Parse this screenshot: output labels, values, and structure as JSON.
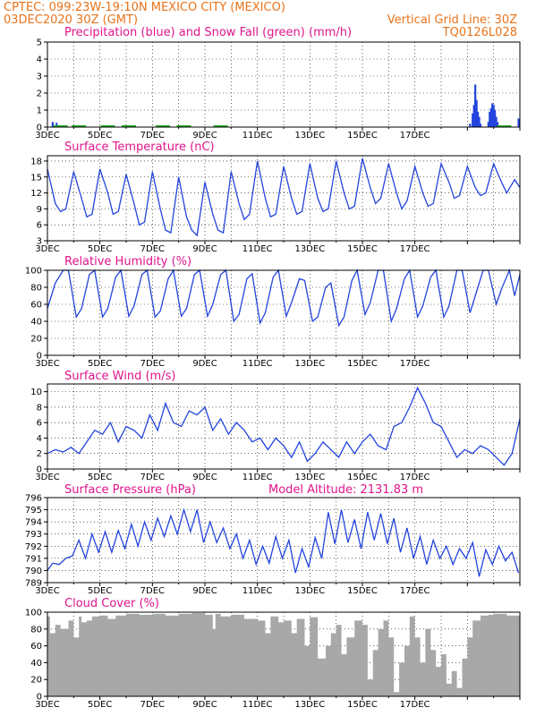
{
  "header": {
    "line1": "CPTEC:   099:23W-19:10N   MEXICO CITY (MEXICO)",
    "line2": "03DEC2020 30Z (GMT)",
    "grid_note": "Vertical Grid Line: 30Z",
    "model_code": "TQ0126L028"
  },
  "colors": {
    "header": "#e8731a",
    "title": "#e0148c",
    "line": "#2244dd",
    "snow": "#22aa22",
    "cloud": "#a8a8a8"
  },
  "chart_data": [
    {
      "type": "bar",
      "title": "Precipitation (blue) and Snow Fall (green) (mm/h)",
      "ylim": [
        0,
        5
      ],
      "yticks": [
        0,
        1,
        2,
        3,
        4,
        5
      ],
      "xticks": [
        "3DEC",
        "5DEC",
        "7DEC",
        "9DEC",
        "11DEC",
        "13DEC",
        "15DEC",
        "17DEC"
      ],
      "precip": [
        [
          0.2,
          0.3
        ],
        [
          0.35,
          0.25
        ],
        [
          16.1,
          0.2
        ],
        [
          16.2,
          0.8
        ],
        [
          16.25,
          1.3
        ],
        [
          16.3,
          2.5
        ],
        [
          16.35,
          1.6
        ],
        [
          16.4,
          0.9
        ],
        [
          16.45,
          0.6
        ],
        [
          16.5,
          0.2
        ],
        [
          16.8,
          0.3
        ],
        [
          16.85,
          0.9
        ],
        [
          16.9,
          1.1
        ],
        [
          16.95,
          1.4
        ],
        [
          17.0,
          1.3
        ],
        [
          17.05,
          1.0
        ],
        [
          17.1,
          0.6
        ],
        [
          17.15,
          0.3
        ],
        [
          17.25,
          0.1
        ],
        [
          17.6,
          0.1
        ],
        [
          17.95,
          0.5
        ]
      ],
      "snow": [
        [
          0.5,
          0.05
        ],
        [
          1.2,
          0.05
        ],
        [
          2.3,
          0.05
        ],
        [
          3.1,
          0.05
        ],
        [
          4.4,
          0.05
        ],
        [
          5.2,
          0.05
        ],
        [
          6.6,
          0.05
        ],
        [
          17.4,
          0.05
        ]
      ]
    },
    {
      "type": "line",
      "title": "Surface Temperature (nC)",
      "ylim": [
        3,
        19
      ],
      "yticks": [
        3,
        6,
        9,
        12,
        15,
        18
      ],
      "xticks": [
        "3DEC",
        "5DEC",
        "7DEC",
        "9DEC",
        "11DEC",
        "13DEC",
        "15DEC",
        "17DEC"
      ],
      "x": [
        0,
        0.3,
        0.5,
        0.7,
        1.0,
        1.3,
        1.5,
        1.7,
        2.0,
        2.3,
        2.5,
        2.7,
        3.0,
        3.3,
        3.5,
        3.7,
        4.0,
        4.3,
        4.5,
        4.7,
        5.0,
        5.3,
        5.5,
        5.7,
        6.0,
        6.3,
        6.5,
        6.7,
        7.0,
        7.3,
        7.5,
        7.7,
        8.0,
        8.3,
        8.5,
        8.7,
        9.0,
        9.3,
        9.5,
        9.7,
        10.0,
        10.3,
        10.5,
        10.7,
        11.0,
        11.3,
        11.5,
        11.7,
        12.0,
        12.3,
        12.5,
        12.7,
        13.0,
        13.3,
        13.5,
        13.7,
        14.0,
        14.3,
        14.5,
        14.7,
        15.0,
        15.3,
        15.5,
        15.7,
        16.0,
        16.3,
        16.5,
        16.7,
        17.0,
        17.3,
        17.5,
        17.8,
        18.0
      ],
      "y": [
        16.5,
        10,
        8.5,
        9,
        16,
        11,
        7.5,
        8,
        16.5,
        12,
        8,
        8.5,
        15.5,
        10,
        6,
        6.5,
        16,
        9,
        5,
        4.5,
        15,
        7.5,
        5,
        4,
        14,
        8,
        5,
        4.5,
        16,
        10,
        7,
        8,
        18,
        11,
        7.5,
        8,
        17,
        11,
        8,
        8.5,
        17.5,
        11,
        8.5,
        9,
        18,
        12,
        9,
        9.5,
        18.5,
        13,
        10,
        11,
        17.5,
        12,
        9,
        10.5,
        17,
        12,
        9.5,
        10,
        17.5,
        14,
        11,
        11.5,
        17,
        13,
        11.5,
        12,
        17.5,
        14,
        12,
        14.5,
        13
      ]
    },
    {
      "type": "line",
      "title": "Relative Humidity (%)",
      "ylim": [
        0,
        100
      ],
      "yticks": [
        0,
        20,
        40,
        60,
        80,
        100
      ],
      "xticks": [
        "3DEC",
        "5DEC",
        "7DEC",
        "9DEC",
        "11DEC",
        "13DEC",
        "15DEC",
        "17DEC"
      ],
      "x": [
        0,
        0.3,
        0.6,
        0.8,
        1.1,
        1.3,
        1.6,
        1.8,
        2.1,
        2.3,
        2.6,
        2.8,
        3.1,
        3.3,
        3.6,
        3.8,
        4.1,
        4.3,
        4.6,
        4.8,
        5.1,
        5.3,
        5.6,
        5.8,
        6.1,
        6.3,
        6.6,
        6.8,
        7.1,
        7.3,
        7.6,
        7.8,
        8.1,
        8.3,
        8.6,
        8.8,
        9.1,
        9.3,
        9.6,
        9.8,
        10.1,
        10.3,
        10.6,
        10.8,
        11.1,
        11.3,
        11.6,
        11.8,
        12.1,
        12.3,
        12.6,
        12.8,
        13.1,
        13.3,
        13.6,
        13.8,
        14.1,
        14.3,
        14.6,
        14.8,
        15.1,
        15.3,
        15.6,
        15.8,
        16.1,
        16.3,
        16.6,
        16.8,
        17.1,
        17.3,
        17.6,
        17.8,
        18.0
      ],
      "y": [
        55,
        85,
        100,
        100,
        45,
        55,
        95,
        100,
        45,
        55,
        92,
        100,
        46,
        58,
        95,
        100,
        45,
        52,
        90,
        100,
        46,
        55,
        95,
        100,
        46,
        60,
        95,
        100,
        40,
        48,
        90,
        96,
        38,
        50,
        92,
        100,
        46,
        62,
        90,
        88,
        40,
        45,
        80,
        85,
        35,
        45,
        88,
        100,
        48,
        62,
        100,
        100,
        40,
        55,
        90,
        100,
        45,
        58,
        92,
        100,
        45,
        58,
        100,
        100,
        50,
        70,
        100,
        100,
        60,
        78,
        100,
        70,
        95
      ]
    },
    {
      "type": "line",
      "title": "Surface Wind (m/s)",
      "ylim": [
        0,
        11
      ],
      "yticks": [
        0,
        2,
        4,
        6,
        8,
        10
      ],
      "xticks": [
        "3DEC",
        "5DEC",
        "7DEC",
        "9DEC",
        "11DEC",
        "13DEC",
        "15DEC",
        "17DEC"
      ],
      "x": [
        0,
        0.3,
        0.6,
        0.9,
        1.2,
        1.5,
        1.8,
        2.1,
        2.4,
        2.7,
        3.0,
        3.3,
        3.6,
        3.9,
        4.2,
        4.5,
        4.8,
        5.1,
        5.4,
        5.7,
        6.0,
        6.3,
        6.6,
        6.9,
        7.2,
        7.5,
        7.8,
        8.1,
        8.4,
        8.7,
        9.0,
        9.3,
        9.6,
        9.9,
        10.2,
        10.5,
        10.8,
        11.1,
        11.4,
        11.7,
        12.0,
        12.3,
        12.6,
        12.9,
        13.2,
        13.5,
        13.8,
        14.1,
        14.4,
        14.7,
        15.0,
        15.3,
        15.6,
        15.9,
        16.2,
        16.5,
        16.8,
        17.1,
        17.4,
        17.7,
        18.0
      ],
      "y": [
        2.0,
        2.5,
        2.2,
        2.8,
        2.0,
        3.5,
        5.0,
        4.5,
        6.0,
        3.5,
        5.5,
        5.0,
        4.0,
        7.0,
        5.0,
        8.5,
        6.0,
        5.5,
        7.5,
        7.0,
        8.0,
        5.0,
        6.5,
        4.5,
        6.0,
        5.0,
        3.5,
        4.0,
        2.5,
        4.0,
        3.0,
        1.5,
        3.5,
        1.0,
        2.0,
        3.5,
        2.5,
        1.5,
        3.5,
        2.0,
        3.5,
        4.5,
        3.0,
        2.5,
        5.5,
        6.0,
        8.0,
        10.5,
        8.5,
        6.0,
        5.5,
        3.5,
        1.5,
        2.5,
        2.0,
        3.0,
        2.5,
        1.5,
        0.5,
        2.0,
        6.5
      ]
    },
    {
      "type": "line",
      "title": "Surface Pressure (hPa)",
      "annotation": "Model Altitude: 2131.83 m",
      "ylim": [
        789,
        796
      ],
      "yticks": [
        789,
        790,
        791,
        792,
        793,
        794,
        795,
        796
      ],
      "xticks": [
        "3DEC",
        "5DEC",
        "7DEC",
        "9DEC",
        "11DEC",
        "13DEC",
        "15DEC",
        "17DEC"
      ],
      "x": [
        0,
        0.2,
        0.45,
        0.7,
        0.95,
        1.2,
        1.45,
        1.7,
        1.95,
        2.2,
        2.45,
        2.7,
        2.95,
        3.2,
        3.45,
        3.7,
        3.95,
        4.2,
        4.45,
        4.7,
        4.95,
        5.2,
        5.45,
        5.7,
        5.95,
        6.2,
        6.45,
        6.7,
        6.95,
        7.2,
        7.45,
        7.7,
        7.95,
        8.2,
        8.45,
        8.7,
        8.95,
        9.2,
        9.45,
        9.7,
        9.95,
        10.2,
        10.45,
        10.7,
        10.95,
        11.2,
        11.45,
        11.7,
        11.95,
        12.2,
        12.45,
        12.7,
        12.95,
        13.2,
        13.45,
        13.7,
        13.95,
        14.2,
        14.45,
        14.7,
        14.95,
        15.2,
        15.45,
        15.7,
        15.95,
        16.2,
        16.45,
        16.7,
        16.95,
        17.2,
        17.45,
        17.7,
        17.95
      ],
      "y": [
        790.0,
        790.6,
        790.5,
        791.0,
        791.2,
        792.5,
        791.0,
        793.0,
        791.5,
        793.2,
        791.5,
        793.3,
        791.8,
        793.8,
        792.0,
        794.0,
        792.5,
        794.3,
        792.8,
        794.5,
        793.0,
        795.0,
        793.2,
        795.0,
        792.3,
        794.0,
        792.3,
        793.5,
        791.8,
        793.0,
        791.0,
        792.5,
        790.5,
        792.0,
        790.6,
        792.8,
        791.0,
        792.5,
        789.8,
        791.8,
        790.3,
        792.7,
        791.0,
        794.8,
        792.2,
        795.0,
        792.3,
        794.2,
        791.8,
        794.8,
        792.5,
        794.7,
        792.2,
        794.3,
        791.5,
        793.5,
        791.0,
        792.8,
        790.5,
        792.5,
        791.0,
        792.0,
        790.5,
        791.8,
        791.0,
        792.3,
        789.5,
        791.7,
        790.5,
        792.0,
        790.8,
        791.5,
        789.8
      ]
    },
    {
      "type": "area",
      "title": "Cloud Cover (%)",
      "ylim": [
        0,
        100
      ],
      "yticks": [
        0,
        20,
        40,
        60,
        80,
        100
      ],
      "xticks": [
        "3DEC",
        "5DEC",
        "7DEC",
        "9DEC",
        "11DEC",
        "13DEC",
        "15DEC",
        "17DEC"
      ],
      "x": [
        0,
        0.1,
        0.3,
        0.5,
        0.8,
        1.0,
        1.2,
        1.3,
        1.5,
        1.7,
        2.0,
        2.3,
        2.6,
        3.0,
        3.5,
        4.0,
        4.5,
        5.0,
        5.5,
        6.0,
        6.3,
        6.4,
        6.6,
        7.0,
        7.5,
        8.0,
        8.3,
        8.5,
        8.8,
        9.0,
        9.3,
        9.5,
        9.8,
        10.0,
        10.3,
        10.6,
        10.8,
        11.0,
        11.2,
        11.4,
        11.7,
        12.0,
        12.2,
        12.4,
        12.6,
        12.8,
        13.0,
        13.2,
        13.4,
        13.6,
        13.8,
        14.0,
        14.2,
        14.4,
        14.6,
        14.8,
        15.0,
        15.2,
        15.4,
        15.6,
        15.8,
        16.0,
        16.2,
        16.5,
        16.8,
        17.0,
        17.5,
        18.0
      ],
      "y": [
        95,
        75,
        85,
        80,
        90,
        70,
        95,
        88,
        90,
        95,
        96,
        92,
        96,
        98,
        97,
        98,
        96,
        98,
        99,
        97,
        80,
        98,
        95,
        97,
        92,
        90,
        75,
        95,
        88,
        90,
        75,
        92,
        60,
        94,
        45,
        60,
        75,
        85,
        50,
        70,
        90,
        85,
        20,
        55,
        80,
        90,
        70,
        5,
        40,
        60,
        95,
        70,
        40,
        80,
        55,
        35,
        50,
        15,
        30,
        10,
        45,
        70,
        90,
        96,
        97,
        98,
        96,
        98
      ]
    }
  ]
}
